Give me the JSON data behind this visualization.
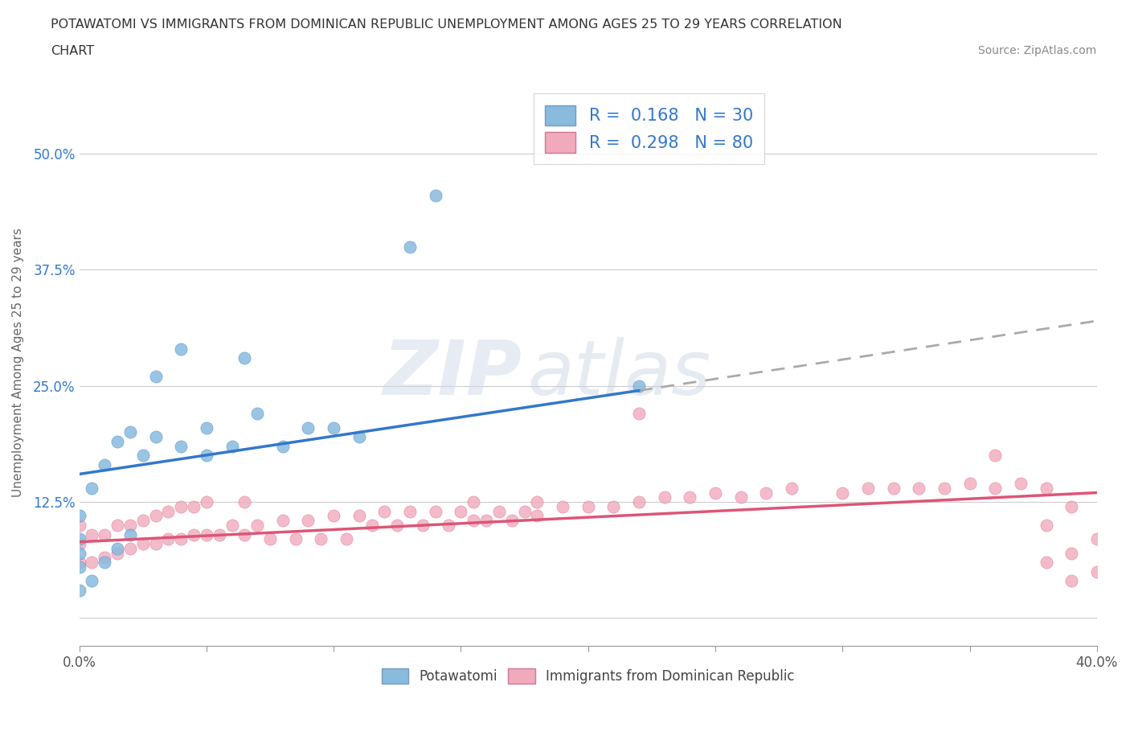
{
  "title_line1": "POTAWATOMI VS IMMIGRANTS FROM DOMINICAN REPUBLIC UNEMPLOYMENT AMONG AGES 25 TO 29 YEARS CORRELATION",
  "title_line2": "CHART",
  "source_text": "Source: ZipAtlas.com",
  "ylabel": "Unemployment Among Ages 25 to 29 years",
  "xlim": [
    0.0,
    0.4
  ],
  "ylim": [
    -0.03,
    0.58
  ],
  "xticks": [
    0.0,
    0.05,
    0.1,
    0.15,
    0.2,
    0.25,
    0.3,
    0.35,
    0.4
  ],
  "xticklabels": [
    "0.0%",
    "",
    "",
    "",
    "",
    "",
    "",
    "",
    "40.0%"
  ],
  "ytick_positions": [
    0.0,
    0.125,
    0.25,
    0.375,
    0.5
  ],
  "ytick_labels": [
    "",
    "12.5%",
    "25.0%",
    "37.5%",
    "50.0%"
  ],
  "grid_color": "#cccccc",
  "background_color": "#ffffff",
  "watermark_text": "ZIPatlas",
  "legend_r1": "R =  0.168   N = 30",
  "legend_r2": "R =  0.298   N = 80",
  "blue_color": "#88bbdd",
  "pink_color": "#f0aabc",
  "blue_line_color": "#3377cc",
  "pink_line_color": "#dd5577",
  "dash_color": "#aaaaaa",
  "potawatomi_x": [
    0.0,
    0.0,
    0.0,
    0.0,
    0.0,
    0.005,
    0.005,
    0.01,
    0.01,
    0.015,
    0.015,
    0.02,
    0.02,
    0.025,
    0.03,
    0.03,
    0.04,
    0.04,
    0.05,
    0.05,
    0.06,
    0.065,
    0.07,
    0.08,
    0.09,
    0.1,
    0.11,
    0.13,
    0.14,
    0.22
  ],
  "potawatomi_y": [
    0.03,
    0.055,
    0.07,
    0.085,
    0.11,
    0.04,
    0.14,
    0.06,
    0.165,
    0.075,
    0.19,
    0.09,
    0.2,
    0.175,
    0.195,
    0.26,
    0.185,
    0.29,
    0.175,
    0.205,
    0.185,
    0.28,
    0.22,
    0.185,
    0.205,
    0.205,
    0.195,
    0.4,
    0.455,
    0.25
  ],
  "dominican_x": [
    0.0,
    0.0,
    0.0,
    0.005,
    0.005,
    0.01,
    0.01,
    0.015,
    0.015,
    0.02,
    0.02,
    0.025,
    0.025,
    0.03,
    0.03,
    0.035,
    0.035,
    0.04,
    0.04,
    0.045,
    0.045,
    0.05,
    0.05,
    0.055,
    0.06,
    0.065,
    0.065,
    0.07,
    0.075,
    0.08,
    0.085,
    0.09,
    0.095,
    0.1,
    0.105,
    0.11,
    0.115,
    0.12,
    0.125,
    0.13,
    0.135,
    0.14,
    0.145,
    0.15,
    0.155,
    0.155,
    0.16,
    0.165,
    0.17,
    0.175,
    0.18,
    0.18,
    0.19,
    0.2,
    0.21,
    0.22,
    0.22,
    0.23,
    0.24,
    0.25,
    0.26,
    0.27,
    0.28,
    0.3,
    0.31,
    0.32,
    0.33,
    0.34,
    0.35,
    0.36,
    0.36,
    0.37,
    0.38,
    0.38,
    0.38,
    0.39,
    0.39,
    0.39,
    0.4,
    0.4
  ],
  "dominican_y": [
    0.06,
    0.08,
    0.1,
    0.06,
    0.09,
    0.065,
    0.09,
    0.07,
    0.1,
    0.075,
    0.1,
    0.08,
    0.105,
    0.08,
    0.11,
    0.085,
    0.115,
    0.085,
    0.12,
    0.09,
    0.12,
    0.09,
    0.125,
    0.09,
    0.1,
    0.09,
    0.125,
    0.1,
    0.085,
    0.105,
    0.085,
    0.105,
    0.085,
    0.11,
    0.085,
    0.11,
    0.1,
    0.115,
    0.1,
    0.115,
    0.1,
    0.115,
    0.1,
    0.115,
    0.105,
    0.125,
    0.105,
    0.115,
    0.105,
    0.115,
    0.11,
    0.125,
    0.12,
    0.12,
    0.12,
    0.125,
    0.22,
    0.13,
    0.13,
    0.135,
    0.13,
    0.135,
    0.14,
    0.135,
    0.14,
    0.14,
    0.14,
    0.14,
    0.145,
    0.14,
    0.175,
    0.145,
    0.06,
    0.1,
    0.14,
    0.04,
    0.07,
    0.12,
    0.05,
    0.085
  ],
  "blue_line_x0": 0.0,
  "blue_line_y0": 0.155,
  "blue_line_x1": 0.22,
  "blue_line_y1": 0.245,
  "pink_line_x0": 0.0,
  "pink_line_y0": 0.082,
  "pink_line_x1": 0.4,
  "pink_line_y1": 0.135,
  "dash_line_x0": 0.22,
  "dash_line_y0": 0.245,
  "dash_line_x1": 0.4,
  "dash_line_y1": 0.32
}
